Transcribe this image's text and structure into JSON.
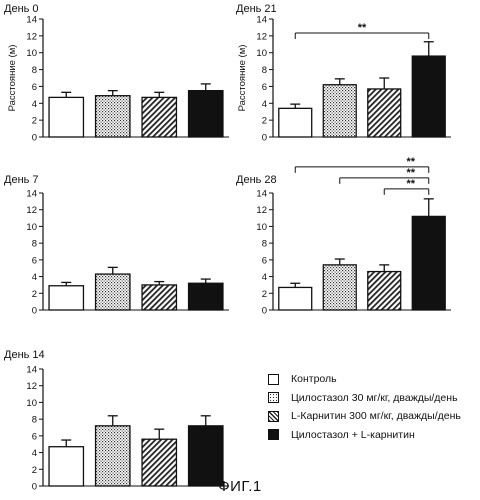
{
  "figure_caption": "ФИГ.1",
  "colors": {
    "ink": "#111111",
    "background": "#ffffff"
  },
  "legend": {
    "items": [
      {
        "label": "Контроль",
        "pattern": "empty"
      },
      {
        "label": "Цилостазол 30 мг/кг, дважды/день",
        "pattern": "dots"
      },
      {
        "label": "L-Карнитин 300 мг/кг,  дважды/день",
        "pattern": "hatch"
      },
      {
        "label": "Цилостазол + L-карнитин",
        "pattern": "solid"
      }
    ]
  },
  "chart_data": [
    {
      "type": "bar",
      "title": "День 0",
      "ylabel": "Расстояние (м)",
      "ylim": [
        0,
        14
      ],
      "yticks": [
        "0",
        "2",
        "4",
        "6",
        "8",
        "10",
        "12",
        "14"
      ],
      "categories": [
        "Контроль",
        "Цилостазол 30 мг/кг, дважды/день",
        "L-Карнитин 300 мг/кг,  дважды/день",
        "Цилостазол + L-карнитин"
      ],
      "values": [
        4.7,
        4.9,
        4.7,
        5.5
      ],
      "errors": [
        0.6,
        0.6,
        0.6,
        0.8
      ],
      "significance": []
    },
    {
      "type": "bar",
      "title": "День 21",
      "ylabel": "Расстояние (м)",
      "ylim": [
        0,
        14
      ],
      "yticks": [
        "0",
        "2",
        "4",
        "6",
        "8",
        "10",
        "12",
        "14"
      ],
      "categories": [
        "Контроль",
        "Цилостазол 30 мг/кг, дважды/день",
        "L-Карнитин 300 мг/кг,  дважды/день",
        "Цилостазол + L-карнитин"
      ],
      "values": [
        3.4,
        6.2,
        5.7,
        9.6
      ],
      "errors": [
        0.5,
        0.7,
        1.3,
        1.7
      ],
      "significance": [
        {
          "from": 0,
          "to": 3,
          "label": "**"
        }
      ]
    },
    {
      "type": "bar",
      "title": "День 7",
      "ylabel": "",
      "ylim": [
        0,
        14
      ],
      "yticks": [
        "0",
        "2",
        "4",
        "6",
        "8",
        "10",
        "12",
        "14"
      ],
      "categories": [
        "Контроль",
        "Цилостазол 30 мг/кг, дважды/день",
        "L-Карнитин 300 мг/кг,  дважды/день",
        "Цилостазол + L-карнитин"
      ],
      "values": [
        2.9,
        4.3,
        3.0,
        3.2
      ],
      "errors": [
        0.4,
        0.8,
        0.4,
        0.5
      ],
      "significance": []
    },
    {
      "type": "bar",
      "title": "День 28",
      "ylabel": "",
      "ylim": [
        0,
        14
      ],
      "yticks": [
        "0",
        "2",
        "4",
        "6",
        "8",
        "10",
        "12",
        "14"
      ],
      "categories": [
        "Контроль",
        "Цилостазол 30 мг/кг, дважды/день",
        "L-Карнитин 300 мг/кг,  дважды/день",
        "Цилостазол + L-карнитин"
      ],
      "values": [
        2.7,
        5.4,
        4.6,
        11.2
      ],
      "errors": [
        0.5,
        0.7,
        0.8,
        2.1
      ],
      "significance": [
        {
          "from": 0,
          "to": 3,
          "label": "**"
        },
        {
          "from": 1,
          "to": 3,
          "label": "**"
        },
        {
          "from": 2,
          "to": 3,
          "label": "**"
        }
      ]
    },
    {
      "type": "bar",
      "title": "День 14",
      "ylabel": "",
      "ylim": [
        0,
        14
      ],
      "yticks": [
        "0",
        "2",
        "4",
        "6",
        "8",
        "10",
        "12",
        "14"
      ],
      "categories": [
        "Контроль",
        "Цилостазол 30 мг/кг, дважды/день",
        "L-Карнитин 300 мг/кг,  дважды/день",
        "Цилостазол + L-карнитин"
      ],
      "values": [
        4.7,
        7.2,
        5.6,
        7.2
      ],
      "errors": [
        0.8,
        1.2,
        1.2,
        1.2
      ],
      "significance": []
    }
  ]
}
